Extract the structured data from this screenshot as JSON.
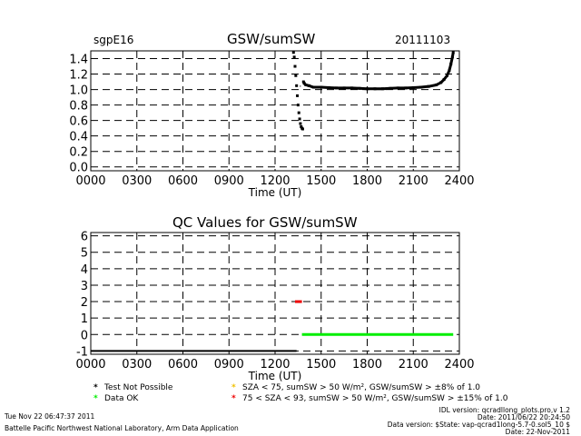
{
  "header": {
    "site": "sgpE16",
    "date": "20111103"
  },
  "colors": {
    "axis": "#000000",
    "series_main": "#000000",
    "qc_not_possible": "#000000",
    "qc_ok": "#00ee00",
    "qc_yellow": "#f0c000",
    "qc_red": "#ee0000"
  },
  "chart_data": [
    {
      "type": "scatter",
      "title": "GSW/sumSW",
      "xlabel": "Time (UT)",
      "ylabel": "",
      "x_ticks": [
        "0000",
        "0300",
        "0600",
        "0900",
        "1200",
        "1500",
        "1800",
        "2100",
        "2400"
      ],
      "xlim": [
        0,
        24
      ],
      "ylim": [
        -0.05,
        1.5
      ],
      "y_ticks": [
        0.0,
        0.2,
        0.4,
        0.6,
        0.8,
        1.0,
        1.2,
        1.4
      ],
      "y_tick_labels": [
        "0.0",
        "0.2",
        "0.4",
        "0.6",
        "0.8",
        "1.0",
        "1.2",
        "1.4"
      ],
      "grid": true,
      "series": [
        {
          "x": [
            13.2,
            13.25,
            13.3,
            13.35,
            13.4,
            13.45,
            13.5,
            13.55,
            13.6,
            13.65,
            13.7,
            13.75,
            13.8,
            13.85,
            13.9,
            14.0,
            14.2,
            14.5,
            15.0,
            15.5,
            16.0,
            16.5,
            17.0,
            17.5,
            18.0,
            18.5,
            19.0,
            19.5,
            20.0,
            20.5,
            21.0,
            21.5,
            22.0,
            22.5,
            22.8,
            23.0,
            23.2,
            23.35,
            23.45,
            23.55,
            23.6
          ],
          "y": [
            1.48,
            1.42,
            1.3,
            1.18,
            1.05,
            0.92,
            0.8,
            0.7,
            0.62,
            0.56,
            0.52,
            0.5,
            0.49,
            1.1,
            1.08,
            1.06,
            1.05,
            1.03,
            1.03,
            1.025,
            1.02,
            1.02,
            1.02,
            1.015,
            1.01,
            1.01,
            1.01,
            1.015,
            1.02,
            1.02,
            1.025,
            1.03,
            1.04,
            1.06,
            1.09,
            1.13,
            1.18,
            1.25,
            1.33,
            1.42,
            1.48
          ]
        }
      ],
      "annotations": [
        {
          "x": 13.55,
          "y": 1.0,
          "text": "·"
        }
      ]
    },
    {
      "type": "line",
      "title": "QC Values for GSW/sumSW",
      "xlabel": "Time (UT)",
      "ylabel": "",
      "x_ticks": [
        "0000",
        "0300",
        "0600",
        "0900",
        "1200",
        "1500",
        "1800",
        "2100",
        "2400"
      ],
      "xlim": [
        0,
        24
      ],
      "ylim": [
        -1.2,
        6.2
      ],
      "y_ticks": [
        -1,
        0,
        1,
        2,
        3,
        4,
        5,
        6
      ],
      "grid": true,
      "series": [
        {
          "name": "Test Not Possible",
          "color_key": "qc_not_possible",
          "x": [
            0,
            13.4
          ],
          "y": [
            -1,
            -1
          ]
        },
        {
          "name": "75 < SZA < 93, sumSW > 50 W/m², GSW/sumSW > ±15% of 1.0",
          "color_key": "qc_red",
          "x": [
            13.3,
            13.75
          ],
          "y": [
            2,
            2
          ]
        },
        {
          "name": "Data OK",
          "color_key": "qc_ok",
          "x": [
            13.75,
            23.6
          ],
          "y": [
            0,
            0
          ]
        }
      ]
    }
  ],
  "legend": [
    {
      "symbol": "*",
      "color_key": "qc_not_possible",
      "label": "Test Not Possible"
    },
    {
      "symbol": "*",
      "color_key": "qc_ok",
      "label": "Data OK"
    },
    {
      "symbol": "*",
      "color_key": "qc_yellow",
      "label": "SZA < 75, sumSW > 50 W/m², GSW/sumSW > ±8% of 1.0"
    },
    {
      "symbol": "*",
      "color_key": "qc_red",
      "label": "75 < SZA < 93, sumSW > 50 W/m², GSW/sumSW > ±15% of 1.0"
    }
  ],
  "footer": {
    "timestamp": "Tue Nov 22 06:47:37 2011",
    "org": "Battelle Pacific Northwest National Laboratory, Arm Data Application",
    "idl_version": "IDL version: qcradllong_plots.pro,v 1.2",
    "run_date": "Date: 2011/06/22 20:24:50",
    "data_version": "Data version: $State: vap-qcrad1long-5.7-0.sol5_10 $",
    "data_date": "Date: 22-Nov-2011"
  }
}
